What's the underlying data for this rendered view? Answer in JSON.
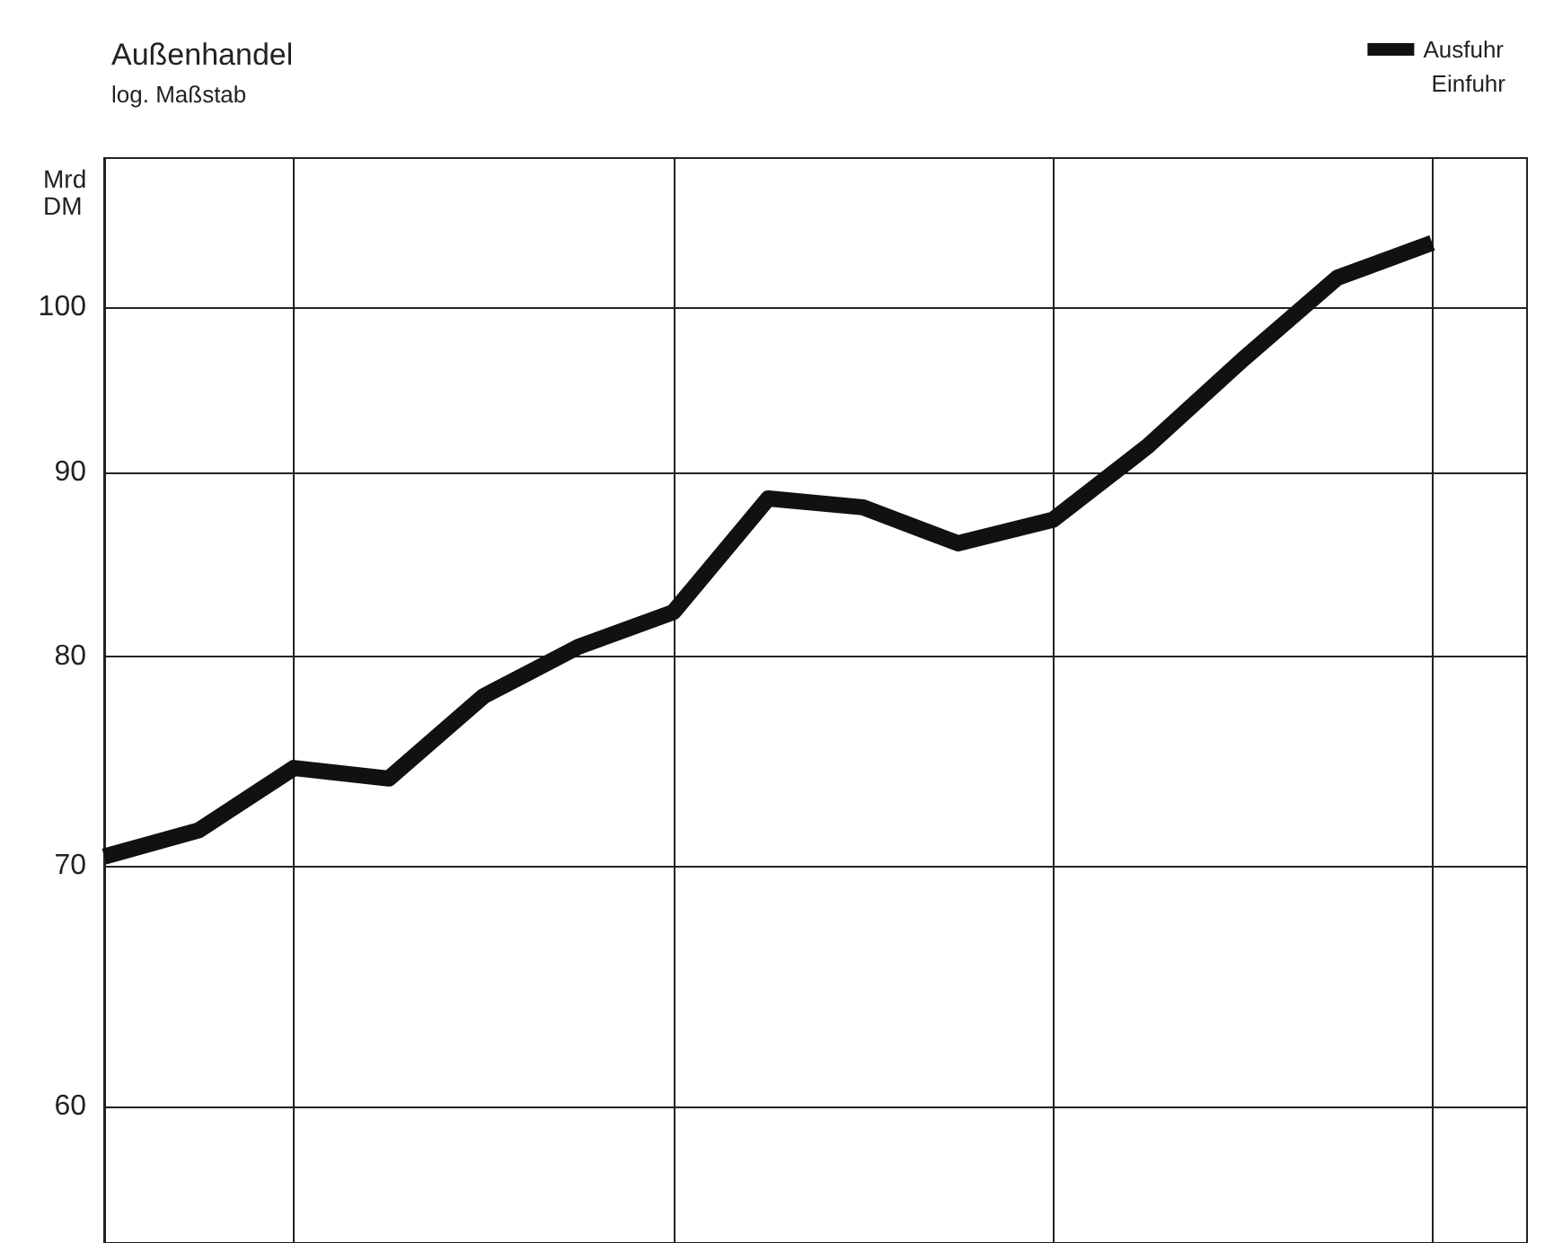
{
  "chart_data": {
    "type": "line",
    "title": "Außenhandel",
    "subtitle": "log. Maßstab",
    "ylabel": "Mrd DM",
    "annotations": [
      "Einfuhr"
    ],
    "categories": [
      null,
      null,
      null,
      null,
      null,
      null,
      null,
      null,
      null,
      null,
      null,
      null,
      null,
      null,
      null,
      null
    ],
    "series": [
      {
        "name": "Ausfuhr",
        "color": "#111111",
        "values": [
          70.4,
          71.6,
          74.5,
          74.0,
          78.0,
          80.5,
          82.3,
          88.5,
          88.0,
          86.0,
          87.3,
          91.5,
          96.7,
          101.9,
          104.2,
          null
        ]
      }
    ],
    "ylim": [
      55,
      110
    ],
    "yticks": [
      60,
      70,
      80,
      90,
      100
    ],
    "log": "y",
    "grid": true,
    "legend": "top right",
    "tick_labels": "y",
    "marker": "none",
    "line_style": "solid"
  }
}
